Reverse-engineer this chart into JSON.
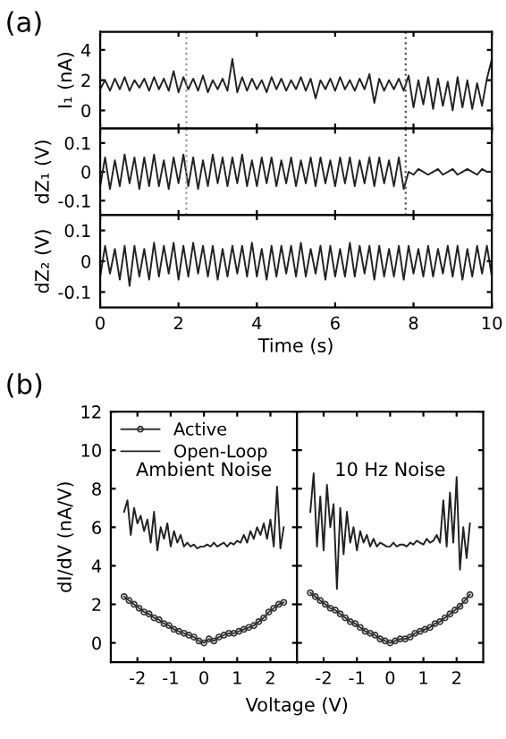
{
  "chart_data": [
    {
      "type": "line",
      "ylabel": "I₁ (nA)",
      "annotations": [
        "(a)"
      ],
      "xlim": [
        0,
        10
      ],
      "xticks": [
        0,
        2,
        4,
        6,
        8,
        10
      ],
      "ylim": [
        -1.2,
        5.2
      ],
      "yticks": [
        0,
        2,
        4
      ],
      "tick_labels": "y",
      "line_style": "solid",
      "ref_lines": [
        {
          "axis": "x",
          "value": 2.2,
          "color": "#999999",
          "line_style": "dotted"
        },
        {
          "axis": "x",
          "value": 7.8,
          "color": "#555555",
          "line_style": "dotted"
        }
      ],
      "x": [
        0,
        0.125,
        0.25,
        0.375,
        0.5,
        0.625,
        0.75,
        0.875,
        1,
        1.125,
        1.25,
        1.375,
        1.5,
        1.625,
        1.75,
        1.875,
        2,
        2.125,
        2.25,
        2.375,
        2.5,
        2.625,
        2.75,
        2.875,
        3,
        3.125,
        3.25,
        3.375,
        3.5,
        3.625,
        3.75,
        3.875,
        4,
        4.125,
        4.25,
        4.375,
        4.5,
        4.625,
        4.75,
        4.875,
        5,
        5.125,
        5.25,
        5.375,
        5.5,
        5.625,
        5.75,
        5.875,
        6,
        6.125,
        6.25,
        6.375,
        6.5,
        6.625,
        6.75,
        6.875,
        7,
        7.125,
        7.25,
        7.375,
        7.5,
        7.625,
        7.75,
        7.875,
        8,
        8.125,
        8.25,
        8.375,
        8.5,
        8.625,
        8.75,
        8.875,
        9,
        9.125,
        9.25,
        9.375,
        9.5,
        9.625,
        9.75,
        9.875,
        10
      ],
      "series": [
        {
          "color": "#222222",
          "values": [
            1.4,
            2.0,
            1.3,
            2.1,
            1.4,
            2.2,
            1.3,
            2.0,
            1.5,
            2.1,
            1.3,
            2.2,
            1.4,
            2.1,
            1.3,
            2.6,
            1.2,
            2.2,
            1.4,
            2.1,
            1.3,
            2.3,
            1.2,
            2.0,
            1.4,
            2.1,
            1.3,
            3.4,
            1.2,
            2.2,
            1.3,
            2.1,
            1.4,
            2.0,
            1.2,
            2.2,
            1.4,
            2.1,
            1.3,
            2.0,
            1.4,
            2.2,
            1.3,
            2.1,
            0.8,
            2.0,
            1.4,
            2.1,
            1.3,
            2.2,
            1.4,
            2.0,
            1.3,
            2.1,
            1.4,
            2.4,
            0.5,
            2.1,
            1.3,
            2.0,
            1.4,
            2.1,
            1.3,
            2.3,
            0.2,
            2.0,
            0.4,
            2.2,
            0.1,
            2.1,
            0.3,
            1.9,
            0.0,
            2.2,
            0.2,
            2.0,
            0.1,
            1.8,
            0.3,
            2.1,
            3.4
          ]
        }
      ]
    },
    {
      "type": "line",
      "ylabel": "dZ₁ (V)",
      "xlim": [
        0,
        10
      ],
      "xticks": [
        0,
        2,
        4,
        6,
        8,
        10
      ],
      "ylim": [
        -0.15,
        0.15
      ],
      "yticks": [
        -0.1,
        0,
        0.1
      ],
      "tick_labels": "y",
      "line_style": "solid",
      "ref_lines": [
        {
          "axis": "x",
          "value": 2.2,
          "color": "#999999",
          "line_style": "dotted"
        },
        {
          "axis": "x",
          "value": 7.8,
          "color": "#555555",
          "line_style": "dotted"
        }
      ],
      "x": [
        0,
        0.125,
        0.25,
        0.375,
        0.5,
        0.625,
        0.75,
        0.875,
        1,
        1.125,
        1.25,
        1.375,
        1.5,
        1.625,
        1.75,
        1.875,
        2,
        2.125,
        2.25,
        2.375,
        2.5,
        2.625,
        2.75,
        2.875,
        3,
        3.125,
        3.25,
        3.375,
        3.5,
        3.625,
        3.75,
        3.875,
        4,
        4.125,
        4.25,
        4.375,
        4.5,
        4.625,
        4.75,
        4.875,
        5,
        5.125,
        5.25,
        5.375,
        5.5,
        5.625,
        5.75,
        5.875,
        6,
        6.125,
        6.25,
        6.375,
        6.5,
        6.625,
        6.75,
        6.875,
        7,
        7.125,
        7.25,
        7.375,
        7.5,
        7.625,
        7.75,
        7.875,
        8,
        8.125,
        8.25,
        8.375,
        8.5,
        8.625,
        8.75,
        8.875,
        9,
        9.125,
        9.25,
        9.375,
        9.5,
        9.625,
        9.75,
        9.875,
        10
      ],
      "series": [
        {
          "color": "#222222",
          "values": [
            -0.05,
            0.05,
            -0.06,
            0.04,
            -0.05,
            0.06,
            -0.04,
            0.05,
            -0.06,
            0.05,
            -0.05,
            0.06,
            -0.05,
            0.04,
            -0.06,
            0.05,
            -0.04,
            0.06,
            -0.05,
            0.05,
            -0.06,
            0.04,
            -0.05,
            0.06,
            -0.04,
            0.05,
            -0.05,
            0.05,
            -0.04,
            0.06,
            -0.05,
            0.04,
            -0.05,
            0.05,
            -0.04,
            0.05,
            -0.05,
            0.04,
            -0.04,
            0.05,
            -0.05,
            0.04,
            -0.04,
            0.05,
            -0.05,
            0.05,
            -0.04,
            0.04,
            -0.05,
            0.05,
            -0.04,
            0.05,
            -0.05,
            0.04,
            -0.04,
            0.05,
            -0.05,
            0.05,
            -0.04,
            0.04,
            -0.05,
            0.05,
            -0.06,
            0.0,
            -0.01,
            0.01,
            0.0,
            -0.01,
            0.0,
            0.01,
            -0.01,
            0.0,
            0.01,
            -0.01,
            0.0,
            0.01,
            0.0,
            -0.01,
            0.01,
            0.0,
            0.0
          ]
        }
      ]
    },
    {
      "type": "line",
      "ylabel": "dZ₂ (V)",
      "xlabel": "Time (s)",
      "xlim": [
        0,
        10
      ],
      "xticks": [
        0,
        2,
        4,
        6,
        8,
        10
      ],
      "ylim": [
        -0.15,
        0.15
      ],
      "yticks": [
        -0.1,
        0,
        0.1
      ],
      "line_style": "solid",
      "x": [
        0,
        0.125,
        0.25,
        0.375,
        0.5,
        0.625,
        0.75,
        0.875,
        1,
        1.125,
        1.25,
        1.375,
        1.5,
        1.625,
        1.75,
        1.875,
        2,
        2.125,
        2.25,
        2.375,
        2.5,
        2.625,
        2.75,
        2.875,
        3,
        3.125,
        3.25,
        3.375,
        3.5,
        3.625,
        3.75,
        3.875,
        4,
        4.125,
        4.25,
        4.375,
        4.5,
        4.625,
        4.75,
        4.875,
        5,
        5.125,
        5.25,
        5.375,
        5.5,
        5.625,
        5.75,
        5.875,
        6,
        6.125,
        6.25,
        6.375,
        6.5,
        6.625,
        6.75,
        6.875,
        7,
        7.125,
        7.25,
        7.375,
        7.5,
        7.625,
        7.75,
        7.875,
        8,
        8.125,
        8.25,
        8.375,
        8.5,
        8.625,
        8.75,
        8.875,
        9,
        9.125,
        9.25,
        9.375,
        9.5,
        9.625,
        9.75,
        9.875,
        10
      ],
      "series": [
        {
          "color": "#222222",
          "values": [
            -0.05,
            0.05,
            -0.04,
            0.04,
            -0.06,
            0.05,
            -0.08,
            0.05,
            -0.05,
            0.04,
            -0.06,
            0.06,
            -0.05,
            0.05,
            -0.04,
            0.06,
            -0.06,
            0.05,
            -0.05,
            0.06,
            -0.04,
            0.05,
            -0.05,
            0.05,
            -0.06,
            0.04,
            -0.05,
            0.05,
            -0.04,
            0.05,
            -0.05,
            0.06,
            -0.05,
            0.04,
            -0.06,
            0.05,
            -0.05,
            0.05,
            -0.04,
            0.05,
            -0.05,
            0.06,
            -0.05,
            0.04,
            -0.04,
            0.05,
            -0.06,
            0.05,
            -0.05,
            0.04,
            -0.05,
            0.06,
            -0.05,
            0.05,
            -0.04,
            0.05,
            -0.06,
            0.05,
            -0.05,
            0.04,
            -0.05,
            0.05,
            -0.06,
            0.05,
            -0.04,
            0.04,
            -0.05,
            0.05,
            -0.05,
            0.04,
            -0.04,
            0.05,
            -0.05,
            0.05,
            -0.06,
            0.04,
            -0.05,
            0.05,
            -0.04,
            0.05,
            -0.05
          ]
        }
      ]
    },
    {
      "type": "line",
      "ylabel": "dI/dV (nA/V)",
      "xlabel": "Voltage (V)",
      "annotations": [
        "(b)",
        "Ambient Noise"
      ],
      "xlim": [
        -2.8,
        2.8
      ],
      "xticks": [
        -2,
        -1,
        0,
        1,
        2
      ],
      "ylim": [
        -1,
        12
      ],
      "yticks": [
        0,
        2,
        4,
        6,
        8,
        10,
        12
      ],
      "legend": "top left",
      "series": [
        {
          "name": "Active",
          "color": "#333333",
          "marker": "circle",
          "x": [
            -2.4,
            -2.25,
            -2.1,
            -1.95,
            -1.8,
            -1.65,
            -1.5,
            -1.35,
            -1.2,
            -1.05,
            -0.9,
            -0.75,
            -0.6,
            -0.45,
            -0.3,
            -0.15,
            0,
            0.15,
            0.3,
            0.45,
            0.6,
            0.75,
            0.9,
            1.05,
            1.2,
            1.35,
            1.5,
            1.65,
            1.8,
            1.95,
            2.1,
            2.25,
            2.4
          ],
          "values": [
            2.4,
            2.2,
            2.0,
            1.8,
            1.6,
            1.5,
            1.3,
            1.2,
            1.0,
            0.9,
            0.7,
            0.6,
            0.5,
            0.4,
            0.3,
            0.1,
            0.0,
            0.2,
            0.1,
            0.3,
            0.4,
            0.5,
            0.5,
            0.6,
            0.7,
            0.8,
            0.9,
            1.1,
            1.3,
            1.6,
            1.8,
            2.0,
            2.1
          ]
        },
        {
          "name": "Open-Loop",
          "color": "#222222",
          "x": [
            -2.4,
            -2.3,
            -2.2,
            -2.1,
            -2.0,
            -1.9,
            -1.8,
            -1.7,
            -1.6,
            -1.5,
            -1.4,
            -1.3,
            -1.2,
            -1.1,
            -1.0,
            -0.9,
            -0.8,
            -0.7,
            -0.6,
            -0.5,
            -0.4,
            -0.3,
            -0.2,
            -0.1,
            0,
            0.1,
            0.2,
            0.3,
            0.4,
            0.5,
            0.6,
            0.7,
            0.8,
            0.9,
            1.0,
            1.1,
            1.2,
            1.3,
            1.4,
            1.5,
            1.6,
            1.7,
            1.8,
            1.9,
            2.0,
            2.1,
            2.2,
            2.3,
            2.4
          ],
          "values": [
            6.8,
            7.4,
            5.6,
            7.0,
            6.2,
            6.6,
            5.8,
            6.4,
            5.2,
            6.8,
            4.8,
            6.0,
            5.4,
            6.2,
            5.0,
            5.8,
            5.2,
            5.6,
            5.0,
            5.2,
            5.0,
            5.1,
            4.9,
            5.0,
            5.0,
            5.1,
            5.0,
            5.2,
            5.0,
            5.1,
            5.2,
            5.0,
            5.2,
            5.1,
            5.3,
            5.2,
            5.6,
            5.2,
            5.8,
            5.4,
            6.0,
            5.6,
            6.2,
            5.4,
            6.4,
            5.0,
            8.1,
            4.9,
            6.0
          ]
        }
      ]
    },
    {
      "type": "line",
      "annotations": [
        "10 Hz Noise"
      ],
      "xlim": [
        -2.8,
        2.8
      ],
      "xticks": [
        -2,
        -1,
        0,
        1,
        2
      ],
      "ylim": [
        -1,
        12
      ],
      "yticks": [
        0,
        2,
        4,
        6,
        8,
        10,
        12
      ],
      "tick_labels": "x",
      "series": [
        {
          "color": "#333333",
          "marker": "circle",
          "x": [
            -2.4,
            -2.25,
            -2.1,
            -1.95,
            -1.8,
            -1.65,
            -1.5,
            -1.35,
            -1.2,
            -1.05,
            -0.9,
            -0.75,
            -0.6,
            -0.45,
            -0.3,
            -0.15,
            0,
            0.15,
            0.3,
            0.45,
            0.6,
            0.75,
            0.9,
            1.05,
            1.2,
            1.35,
            1.5,
            1.65,
            1.8,
            1.95,
            2.1,
            2.25,
            2.4
          ],
          "values": [
            2.6,
            2.4,
            2.2,
            2.0,
            1.8,
            1.7,
            1.5,
            1.3,
            1.1,
            1.0,
            0.8,
            0.6,
            0.5,
            0.4,
            0.2,
            0.1,
            0.0,
            0.1,
            0.2,
            0.2,
            0.3,
            0.5,
            0.6,
            0.7,
            0.8,
            1.0,
            1.1,
            1.3,
            1.5,
            1.7,
            1.9,
            2.2,
            2.5
          ]
        },
        {
          "color": "#222222",
          "x": [
            -2.4,
            -2.3,
            -2.2,
            -2.1,
            -2.0,
            -1.9,
            -1.8,
            -1.7,
            -1.6,
            -1.5,
            -1.4,
            -1.3,
            -1.2,
            -1.1,
            -1.0,
            -0.9,
            -0.8,
            -0.7,
            -0.6,
            -0.5,
            -0.4,
            -0.3,
            -0.2,
            -0.1,
            0,
            0.1,
            0.2,
            0.3,
            0.4,
            0.5,
            0.6,
            0.7,
            0.8,
            0.9,
            1.0,
            1.1,
            1.2,
            1.3,
            1.4,
            1.5,
            1.6,
            1.7,
            1.8,
            1.9,
            2.0,
            2.1,
            2.2,
            2.3,
            2.4
          ],
          "values": [
            6.8,
            8.8,
            5.0,
            7.6,
            4.8,
            8.2,
            6.0,
            7.2,
            2.8,
            7.0,
            4.6,
            6.8,
            5.2,
            6.0,
            4.8,
            5.8,
            5.2,
            5.6,
            5.0,
            5.4,
            5.0,
            5.2,
            5.1,
            5.0,
            5.0,
            5.2,
            5.0,
            5.1,
            5.1,
            5.0,
            5.2,
            5.1,
            5.3,
            5.2,
            5.1,
            5.4,
            5.2,
            5.3,
            5.6,
            5.2,
            7.4,
            5.0,
            7.8,
            5.2,
            8.6,
            3.8,
            6.0,
            4.4,
            6.2
          ]
        }
      ]
    }
  ]
}
